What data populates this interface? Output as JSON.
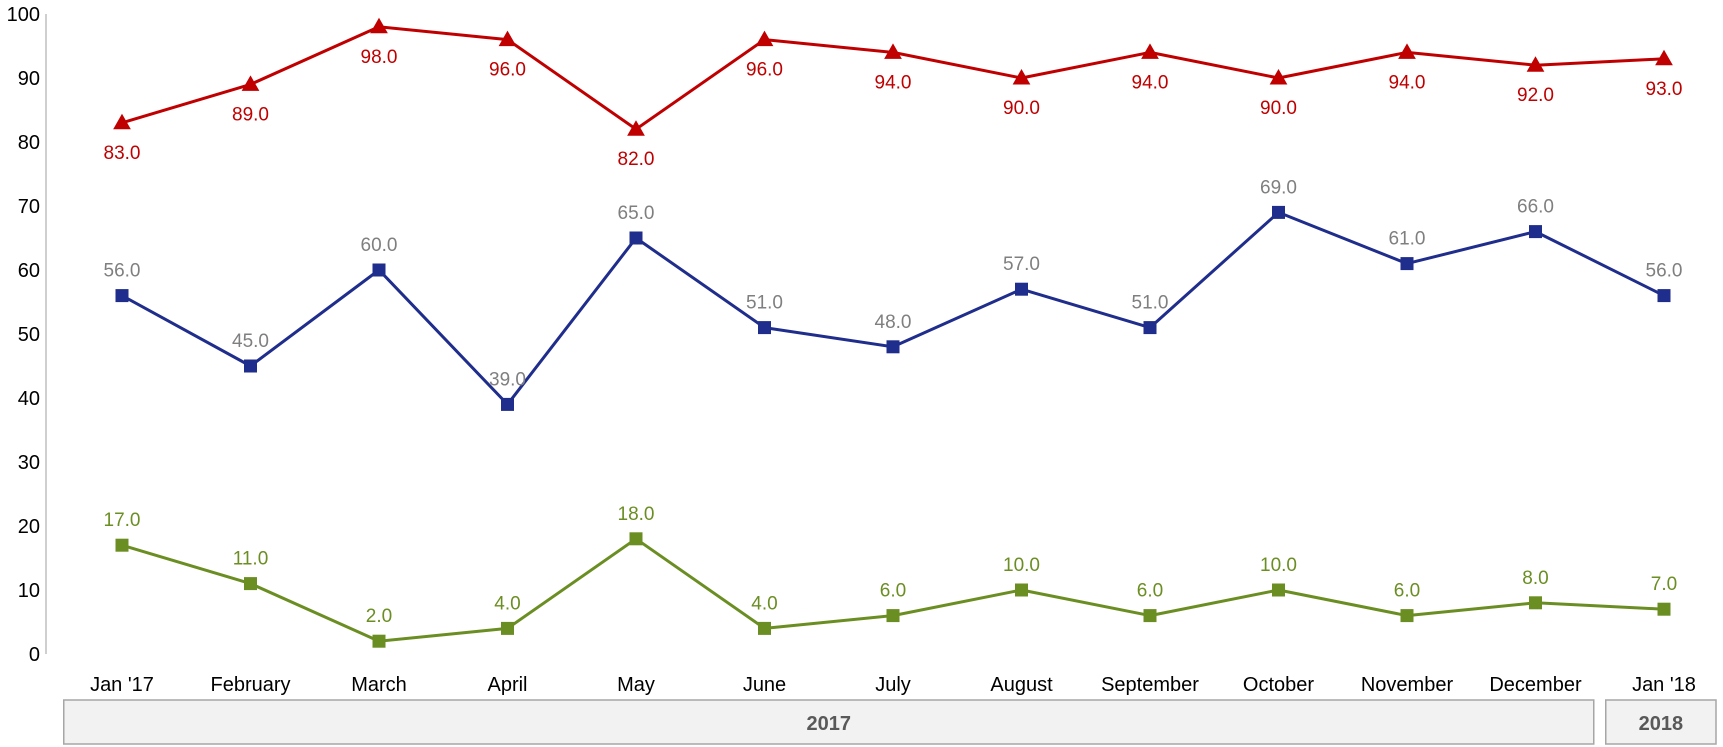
{
  "chart_data": {
    "type": "line",
    "categories": [
      "Jan '17",
      "February",
      "March",
      "April",
      "May",
      "June",
      "July",
      "August",
      "September",
      "October",
      "November",
      "December",
      "Jan '18"
    ],
    "year_groups": [
      {
        "label": "2017",
        "from": 0,
        "to": 11
      },
      {
        "label": "2018",
        "from": 12,
        "to": 12
      }
    ],
    "ylim": [
      0,
      100
    ],
    "yticks": [
      0,
      10,
      20,
      30,
      40,
      50,
      60,
      70,
      80,
      90,
      100
    ],
    "grid": false,
    "series": [
      {
        "values": [
          83.0,
          89.0,
          98.0,
          96.0,
          82.0,
          96.0,
          94.0,
          90.0,
          94.0,
          90.0,
          94.0,
          92.0,
          93.0
        ],
        "labels": [
          "83.0",
          "89.0",
          "98.0",
          "96.0",
          "82.0",
          "96.0",
          "94.0",
          "90.0",
          "94.0",
          "90.0",
          "94.0",
          "92.0",
          "93.0"
        ],
        "color": "#c00000",
        "label_color": "#c00000",
        "marker": "triangle",
        "label_position": "below"
      },
      {
        "values": [
          56.0,
          45.0,
          60.0,
          39.0,
          65.0,
          51.0,
          48.0,
          57.0,
          51.0,
          69.0,
          61.0,
          66.0,
          56.0
        ],
        "labels": [
          "56.0",
          "45.0",
          "60.0",
          "39.0",
          "65.0",
          "51.0",
          "48.0",
          "57.0",
          "51.0",
          "69.0",
          "61.0",
          "66.0",
          "56.0"
        ],
        "color": "#1f2d8c",
        "label_color": "#7f7f7f",
        "marker": "square",
        "label_position": "above"
      },
      {
        "values": [
          17.0,
          11.0,
          2.0,
          4.0,
          18.0,
          4.0,
          6.0,
          10.0,
          6.0,
          10.0,
          6.0,
          8.0,
          7.0
        ],
        "labels": [
          "17.0",
          "11.0",
          "2.0",
          "4.0",
          "18.0",
          "4.0",
          "6.0",
          "10.0",
          "6.0",
          "10.0",
          "6.0",
          "8.0",
          "7.0"
        ],
        "color": "#6b8e23",
        "label_color": "#6b8e23",
        "marker": "square",
        "label_position": "above"
      }
    ]
  }
}
